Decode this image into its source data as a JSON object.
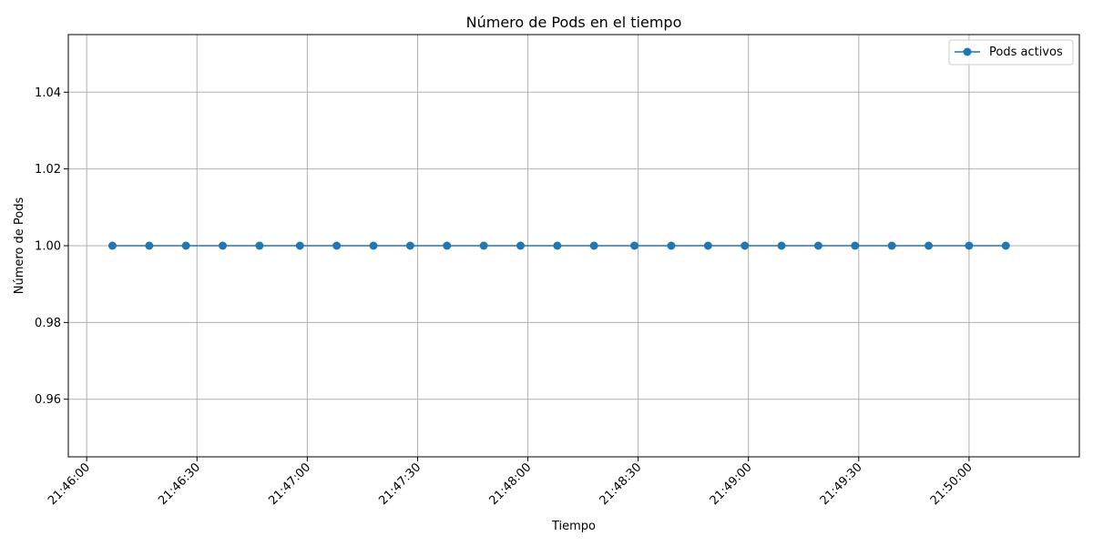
{
  "chart_data": {
    "type": "line",
    "title": "Número de Pods en el tiempo",
    "xlabel": "Tiempo",
    "ylabel": "Número de Pods",
    "x_type": "time",
    "x": [
      "21:46:07",
      "21:46:17",
      "21:46:27",
      "21:46:37",
      "21:46:47",
      "21:46:58",
      "21:47:08",
      "21:47:18",
      "21:47:28",
      "21:47:38",
      "21:47:48",
      "21:47:58",
      "21:48:08",
      "21:48:18",
      "21:48:29",
      "21:48:39",
      "21:48:49",
      "21:48:59",
      "21:49:09",
      "21:49:19",
      "21:49:29",
      "21:49:39",
      "21:49:49",
      "21:50:00",
      "21:50:10"
    ],
    "series": [
      {
        "name": "Pods activos",
        "values": [
          1,
          1,
          1,
          1,
          1,
          1,
          1,
          1,
          1,
          1,
          1,
          1,
          1,
          1,
          1,
          1,
          1,
          1,
          1,
          1,
          1,
          1,
          1,
          1,
          1
        ],
        "color": "#1f77b4",
        "marker": "circle"
      }
    ],
    "xlim": [
      "21:45:55",
      "21:50:30"
    ],
    "ylim": [
      0.945,
      1.055
    ],
    "x_ticks": [
      "21:46:00",
      "21:46:30",
      "21:47:00",
      "21:47:30",
      "21:48:00",
      "21:48:30",
      "21:49:00",
      "21:49:30",
      "21:50:00"
    ],
    "y_ticks": [
      "0.96",
      "0.98",
      "1.00",
      "1.02",
      "1.04"
    ],
    "grid": true,
    "legend_position": "upper right"
  }
}
